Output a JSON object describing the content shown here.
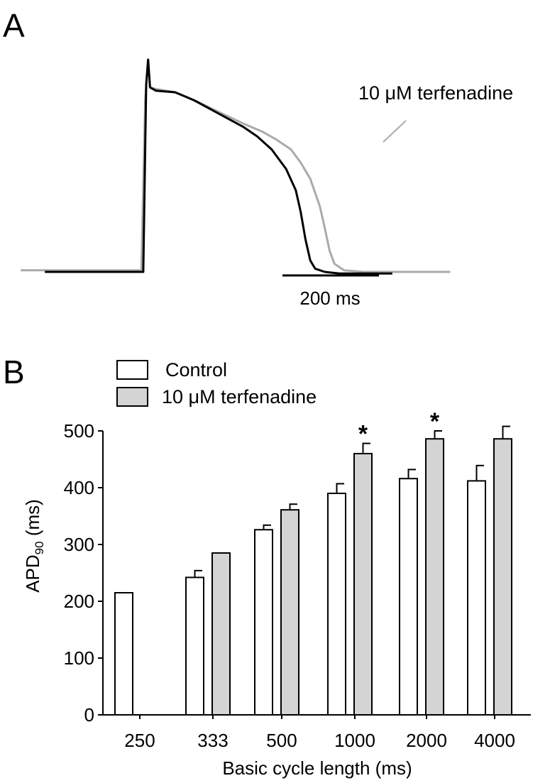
{
  "panel_a": {
    "label": "A",
    "drug_label": "10 μM terfenadine",
    "scale_bar_label": "200 ms",
    "scale_bar_ms": 200,
    "traces": [
      {
        "name": "Control",
        "color": "#000000"
      },
      {
        "name": "10 μM terfenadine",
        "color": "#aaaaaa"
      }
    ]
  },
  "panel_b": {
    "label": "B",
    "legend": [
      {
        "label": "Control",
        "fill": "#ffffff"
      },
      {
        "label": "10 μM terfenadine",
        "fill": "#d4d4d4"
      }
    ],
    "ylabel_main": "APD",
    "ylabel_sub": "90",
    "ylabel_unit": " (ms)",
    "significance_marker": "*"
  },
  "chart_data": [
    {
      "type": "line",
      "xlabel": "",
      "ylabel": "",
      "scale_bar_ms": 200,
      "series": [
        {
          "name": "Control",
          "x_ms": [
            -210,
            -6,
            0,
            4,
            8,
            20,
            60,
            100,
            150,
            200,
            230,
            260,
            290,
            310,
            320,
            330,
            340,
            350,
            370,
            400,
            450,
            510
          ],
          "y_mV": [
            -85,
            -85,
            30,
            45,
            28,
            26,
            25,
            20,
            12,
            4,
            -2,
            -10,
            -22,
            -35,
            -48,
            -65,
            -78,
            -83,
            -85,
            -86,
            -86,
            -86
          ]
        },
        {
          "name": "10 μM terfenadine",
          "x_ms": [
            -260,
            -10,
            -2,
            4,
            8,
            20,
            60,
            100,
            150,
            200,
            240,
            270,
            300,
            320,
            340,
            360,
            370,
            380,
            390,
            410,
            450,
            540,
            630
          ],
          "y_mV": [
            -84,
            -84,
            20,
            45,
            28,
            27,
            25,
            20,
            13,
            6,
            1,
            -4,
            -10,
            -18,
            -28,
            -45,
            -58,
            -72,
            -80,
            -84,
            -85,
            -85,
            -85
          ]
        }
      ]
    },
    {
      "type": "bar",
      "xlabel": "Basic cycle length (ms)",
      "ylabel": "APD90 (ms)",
      "categories": [
        "250",
        "333",
        "500",
        "1000",
        "2000",
        "4000"
      ],
      "ylim": [
        0,
        500
      ],
      "yticks": [
        0,
        100,
        200,
        300,
        400,
        500
      ],
      "series": [
        {
          "name": "Control",
          "values": [
            215,
            242,
            326,
            390,
            416,
            412
          ],
          "errors": [
            0,
            12,
            8,
            17,
            16,
            27
          ]
        },
        {
          "name": "10 μM terfenadine",
          "values": [
            null,
            285,
            361,
            460,
            486,
            486
          ],
          "errors": [
            0,
            0,
            10,
            18,
            14,
            22
          ]
        }
      ],
      "significant": [
        false,
        false,
        false,
        true,
        true,
        false
      ]
    }
  ]
}
